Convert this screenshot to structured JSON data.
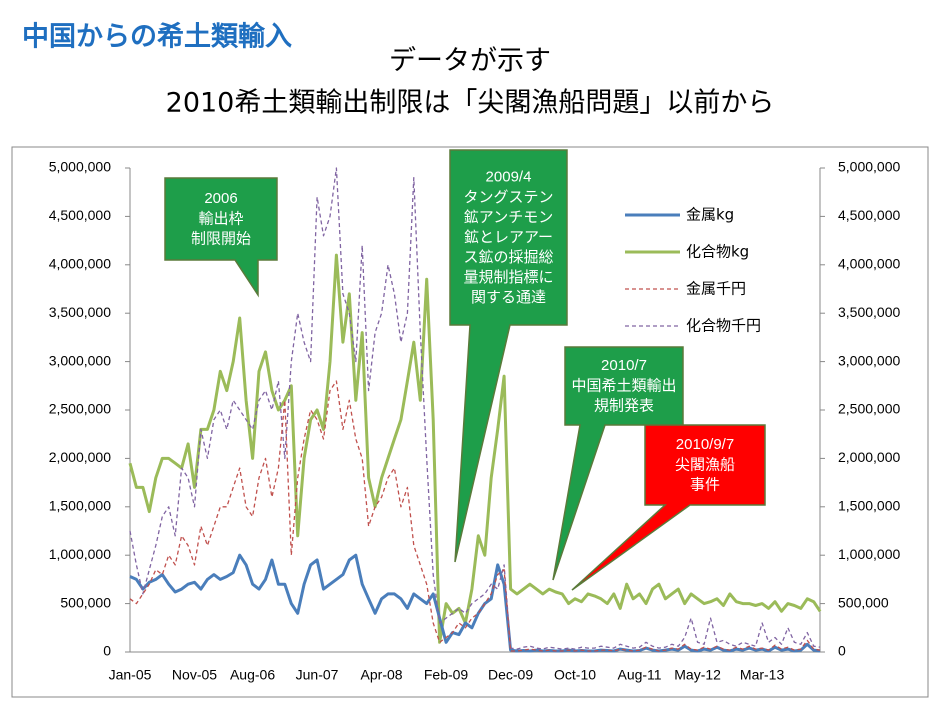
{
  "chart_data": {
    "type": "line",
    "heading": "中国からの希土類輸入",
    "title": "データが示す",
    "subtitle": "2010希土類輸出制限は「尖閣漁船問題」以前から",
    "categories": [
      "Jan-05",
      null,
      null,
      null,
      null,
      null,
      null,
      null,
      null,
      null,
      "Nov-05",
      null,
      null,
      null,
      null,
      null,
      null,
      null,
      null,
      "Aug-06",
      null,
      null,
      null,
      null,
      null,
      null,
      null,
      null,
      null,
      "Jun-07",
      null,
      null,
      null,
      null,
      null,
      null,
      null,
      null,
      null,
      "Apr-08",
      null,
      null,
      null,
      null,
      null,
      null,
      null,
      null,
      null,
      "Feb-09",
      null,
      null,
      null,
      null,
      null,
      null,
      null,
      null,
      null,
      "Dec-09",
      null,
      null,
      null,
      null,
      null,
      null,
      null,
      null,
      null,
      "Oct-10",
      null,
      null,
      null,
      null,
      null,
      null,
      null,
      null,
      null,
      "Aug-11",
      null,
      null,
      null,
      null,
      null,
      null,
      null,
      null,
      "May-12",
      null,
      null,
      null,
      null,
      null,
      null,
      null,
      null,
      null,
      "Mar-13",
      null,
      null,
      null,
      null,
      null,
      null,
      null,
      null,
      null
    ],
    "ylim": [
      0,
      5000000
    ],
    "yticks": [
      0,
      {
        "value": 500000,
        "label": "500,000"
      },
      {
        "value": 1000000,
        "label": "1,000,000"
      },
      {
        "value": 1500000,
        "label": "1,500,000"
      },
      {
        "value": 2000000,
        "label": "2,000,000"
      },
      {
        "value": 2500000,
        "label": "2,500,000"
      },
      {
        "value": 3000000,
        "label": "3,000,000"
      },
      {
        "value": 3500000,
        "label": "3,500,000"
      },
      {
        "value": 4000000,
        "label": "4,000,000"
      },
      {
        "value": 4500000,
        "label": "4,500,000"
      },
      {
        "value": 5000000,
        "label": "5,000,000"
      }
    ],
    "y2lim": [
      0,
      5000000
    ],
    "y2ticks": [
      0,
      {
        "value": 500000,
        "label": "500,000"
      },
      {
        "value": 1000000,
        "label": "1,000,000"
      },
      {
        "value": 1500000,
        "label": "1,500,000"
      },
      {
        "value": 2000000,
        "label": "2,000,000"
      },
      {
        "value": 2500000,
        "label": "2,500,000"
      },
      {
        "value": 3000000,
        "label": "3,000,000"
      },
      {
        "value": 3500000,
        "label": "3,500,000"
      },
      {
        "value": 4000000,
        "label": "4,000,000"
      },
      {
        "value": 4500000,
        "label": "4,500,000"
      },
      {
        "value": 5000000,
        "label": "5,000,000"
      }
    ],
    "series": [
      {
        "name": "金属kg",
        "color": "#4a7ebb",
        "dash": false,
        "values": [
          780000,
          750000,
          650000,
          720000,
          750000,
          800000,
          700000,
          620000,
          650000,
          700000,
          720000,
          650000,
          750000,
          800000,
          750000,
          780000,
          820000,
          1000000,
          900000,
          700000,
          650000,
          750000,
          950000,
          700000,
          700000,
          500000,
          400000,
          700000,
          900000,
          950000,
          650000,
          700000,
          750000,
          800000,
          950000,
          1000000,
          700000,
          550000,
          400000,
          550000,
          600000,
          600000,
          550000,
          450000,
          600000,
          550000,
          500000,
          600000,
          350000,
          100000,
          200000,
          180000,
          300000,
          250000,
          400000,
          500000,
          550000,
          900000,
          700000,
          20000,
          10000,
          15000,
          10000,
          20000,
          10000,
          15000,
          10000,
          10000,
          20000,
          10000,
          15000,
          10000,
          10000,
          20000,
          15000,
          10000,
          30000,
          20000,
          10000,
          15000,
          40000,
          20000,
          10000,
          20000,
          30000,
          20000,
          60000,
          20000,
          10000,
          30000,
          20000,
          50000,
          20000,
          10000,
          30000,
          20000,
          40000,
          20000,
          30000,
          10000,
          50000,
          20000,
          30000,
          10000,
          20000,
          80000,
          20000,
          10000
        ]
      },
      {
        "name": "化合物kg",
        "color": "#9bbb59",
        "dash": false,
        "values": [
          1950000,
          1700000,
          1700000,
          1450000,
          1800000,
          2000000,
          2000000,
          1950000,
          1900000,
          2150000,
          1700000,
          2300000,
          2300000,
          2500000,
          2900000,
          2700000,
          3000000,
          3450000,
          2600000,
          2000000,
          2900000,
          3100000,
          2700000,
          2500000,
          2600000,
          2750000,
          1200000,
          2000000,
          2400000,
          2500000,
          2300000,
          3000000,
          4100000,
          3200000,
          3700000,
          2600000,
          3300000,
          1800000,
          1500000,
          1800000,
          2000000,
          2200000,
          2400000,
          2800000,
          3200000,
          2600000,
          3850000,
          2400000,
          100000,
          500000,
          400000,
          450000,
          300000,
          650000,
          1200000,
          1000000,
          1800000,
          2300000,
          2850000,
          650000,
          600000,
          650000,
          700000,
          650000,
          600000,
          650000,
          620000,
          600000,
          500000,
          550000,
          520000,
          600000,
          580000,
          550000,
          500000,
          600000,
          450000,
          700000,
          550000,
          600000,
          500000,
          650000,
          700000,
          550000,
          600000,
          650000,
          500000,
          600000,
          550000,
          500000,
          520000,
          550000,
          480000,
          600000,
          520000,
          500000,
          500000,
          480000,
          500000,
          450000,
          520000,
          420000,
          500000,
          480000,
          450000,
          550000,
          520000,
          420000
        ]
      },
      {
        "name": "金属千円",
        "color": "#c0504d",
        "dash": true,
        "axis": "y2",
        "values": [
          550000,
          500000,
          600000,
          700000,
          850000,
          800000,
          1000000,
          900000,
          1200000,
          1100000,
          900000,
          1300000,
          1100000,
          1300000,
          1500000,
          1500000,
          1700000,
          1900000,
          1500000,
          1400000,
          1800000,
          2000000,
          1600000,
          1900000,
          2600000,
          1000000,
          1800000,
          2200000,
          2500000,
          2400000,
          2200000,
          2700000,
          2800000,
          2300000,
          2600000,
          2200000,
          2000000,
          1300000,
          1500000,
          1600000,
          1800000,
          1900000,
          1500000,
          1700000,
          1100000,
          900000,
          700000,
          300000,
          100000,
          150000,
          200000,
          300000,
          250000,
          350000,
          400000,
          500000,
          600000,
          800000,
          850000,
          10000,
          10000,
          20000,
          30000,
          20000,
          10000,
          20000,
          10000,
          10000,
          20000,
          10000,
          20000,
          10000,
          10000,
          20000,
          20000,
          10000,
          30000,
          20000,
          10000,
          20000,
          50000,
          30000,
          10000,
          20000,
          40000,
          30000,
          80000,
          30000,
          20000,
          50000,
          30000,
          60000,
          30000,
          20000,
          50000,
          30000,
          60000,
          30000,
          40000,
          20000,
          70000,
          30000,
          50000,
          20000,
          30000,
          120000,
          30000,
          20000
        ]
      },
      {
        "name": "化合物千円",
        "color": "#8064a2",
        "dash": true,
        "axis": "y2",
        "values": [
          1250000,
          900000,
          600000,
          850000,
          1100000,
          1400000,
          1500000,
          1200000,
          1900000,
          1800000,
          1500000,
          2300000,
          2000000,
          2400000,
          2500000,
          2300000,
          2600000,
          2500000,
          2400000,
          2300000,
          2600000,
          2700000,
          2500000,
          2800000,
          2000000,
          3000000,
          3500000,
          3200000,
          3000000,
          4700000,
          4300000,
          4500000,
          5000000,
          3700000,
          3500000,
          3000000,
          4200000,
          2700000,
          3300000,
          3500000,
          4000000,
          3700000,
          3200000,
          3500000,
          4900000,
          3300000,
          2000000,
          800000,
          300000,
          350000,
          400000,
          450000,
          400000,
          500000,
          550000,
          600000,
          700000,
          650000,
          900000,
          40000,
          30000,
          50000,
          60000,
          40000,
          30000,
          50000,
          40000,
          30000,
          40000,
          30000,
          50000,
          40000,
          40000,
          60000,
          50000,
          40000,
          80000,
          60000,
          40000,
          50000,
          100000,
          60000,
          40000,
          50000,
          80000,
          60000,
          150000,
          350000,
          100000,
          80000,
          350000,
          100000,
          120000,
          80000,
          60000,
          100000,
          80000,
          60000,
          300000,
          100000,
          150000,
          80000,
          250000,
          100000,
          80000,
          200000,
          60000,
          50000
        ]
      }
    ],
    "annotations": [
      {
        "title": "2006",
        "lines": [
          "輸出枠",
          "制限開始"
        ],
        "color": "#1e9e4a"
      },
      {
        "title": "2009/4",
        "lines": [
          "タングステン",
          "鉱アンチモン",
          "鉱とレアアー",
          "ス鉱の採掘総",
          "量規制指標に",
          "関する通達"
        ],
        "color": "#1e9e4a"
      },
      {
        "title": "2010/7",
        "lines": [
          "中国希土類輸出",
          "規制発表"
        ],
        "color": "#1e9e4a"
      },
      {
        "title": "2010/9/7",
        "lines": [
          "尖閣漁船",
          "事件"
        ],
        "color": "#ff0000"
      }
    ]
  }
}
